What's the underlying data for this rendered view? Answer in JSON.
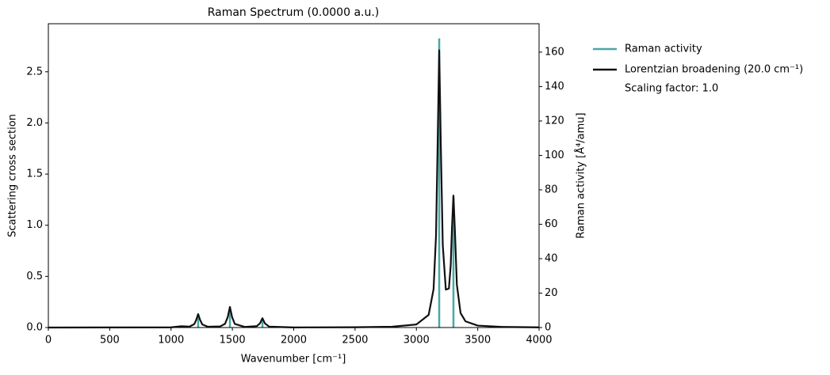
{
  "chart_data": {
    "type": "line",
    "title": "Raman Spectrum (0.0000 a.u.)",
    "x_label": "Wavenumber [cm⁻¹]",
    "y_label": "Scattering cross section",
    "y2_label": "Raman activity [Å⁴/amu]",
    "annotation": "Scaling factor: 1.0",
    "xlim": [
      0,
      4000
    ],
    "xticks": [
      0,
      500,
      1000,
      1500,
      2000,
      2500,
      3000,
      3500,
      4000
    ],
    "ylim": [
      0,
      2.97
    ],
    "yticks": [
      {
        "value": 0,
        "label": "0.0"
      },
      {
        "value": 0.5,
        "label": "0.5"
      },
      {
        "value": 1,
        "label": "1.0"
      },
      {
        "value": 1.5,
        "label": "1.5"
      },
      {
        "value": 2,
        "label": "2.0"
      },
      {
        "value": 2.5,
        "label": "2.5"
      }
    ],
    "y2lim": [
      0,
      176.5
    ],
    "y2ticks": [
      0,
      20,
      40,
      60,
      80,
      100,
      120,
      140,
      160
    ],
    "legend": "outside-right",
    "series": [
      {
        "name": "Raman activity",
        "color": "#4aa6a8",
        "style": "stem",
        "axis": "y2",
        "x": [
          1085,
          1221,
          1480,
          1745,
          3186,
          3302
        ],
        "values": [
          1,
          8,
          12,
          5,
          168,
          76
        ]
      },
      {
        "name": "Lorentzian broadening (20.0 cm⁻¹)",
        "color": "#111111",
        "style": "line",
        "x": [
          0,
          500,
          1000,
          1085,
          1150,
          1190,
          1205,
          1221,
          1237,
          1255,
          1300,
          1400,
          1440,
          1462,
          1480,
          1498,
          1520,
          1600,
          1700,
          1725,
          1745,
          1765,
          1800,
          2000,
          2500,
          2800,
          3000,
          3100,
          3140,
          3160,
          3172,
          3186,
          3200,
          3215,
          3240,
          3265,
          3280,
          3290,
          3302,
          3314,
          3330,
          3360,
          3400,
          3500,
          3700,
          4000
        ],
        "values": [
          0,
          0.001,
          0.002,
          0.013,
          0.009,
          0.034,
          0.074,
          0.131,
          0.074,
          0.03,
          0.008,
          0.011,
          0.036,
          0.101,
          0.201,
          0.101,
          0.035,
          0.006,
          0.014,
          0.041,
          0.091,
          0.041,
          0.009,
          0.001,
          0.003,
          0.008,
          0.03,
          0.124,
          0.375,
          0.898,
          1.713,
          2.71,
          1.728,
          0.807,
          0.371,
          0.381,
          0.613,
          0.971,
          1.29,
          0.946,
          0.419,
          0.142,
          0.061,
          0.019,
          0.006,
          0.002
        ]
      }
    ]
  }
}
